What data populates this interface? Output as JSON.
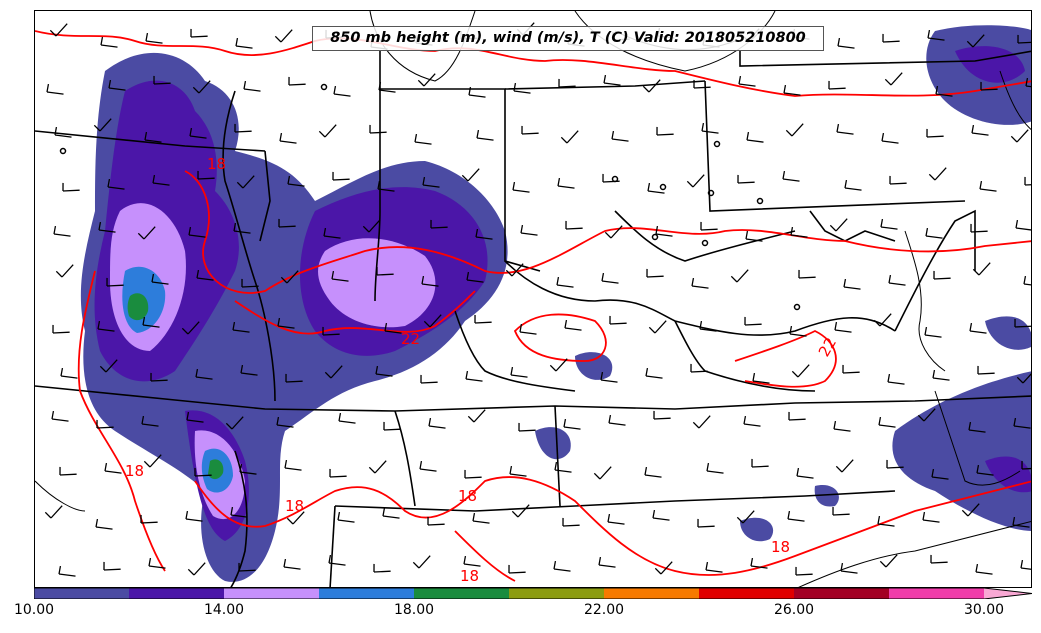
{
  "title": "850 mb height (m), wind (m/s), T (C) Valid: 201805210800",
  "colorbar": {
    "min": 10,
    "max": 32,
    "step": 2,
    "colors": [
      "#4b4ba3",
      "#4b16a8",
      "#c690fc",
      "#2d7ddb",
      "#1a8c3e",
      "#8c9c10",
      "#f77a00",
      "#e00000",
      "#a30024",
      "#f03caa",
      "#f9a8d4"
    ],
    "ticks": [
      {
        "value": 10,
        "label": "10.00"
      },
      {
        "value": 14,
        "label": "14.00"
      },
      {
        "value": 18,
        "label": "18.00"
      },
      {
        "value": 22,
        "label": "22.00"
      },
      {
        "value": 26,
        "label": "26.00"
      },
      {
        "value": 30,
        "label": "30.00"
      }
    ]
  },
  "contour_labels": [
    {
      "text": "18"
    },
    {
      "text": "22"
    },
    {
      "text": "22"
    },
    {
      "text": "18"
    },
    {
      "text": "18"
    },
    {
      "text": "18"
    },
    {
      "text": "18"
    },
    {
      "text": "18"
    }
  ],
  "colors": {
    "temperature_contour": "#ff0000",
    "boundaries": "#000000"
  }
}
